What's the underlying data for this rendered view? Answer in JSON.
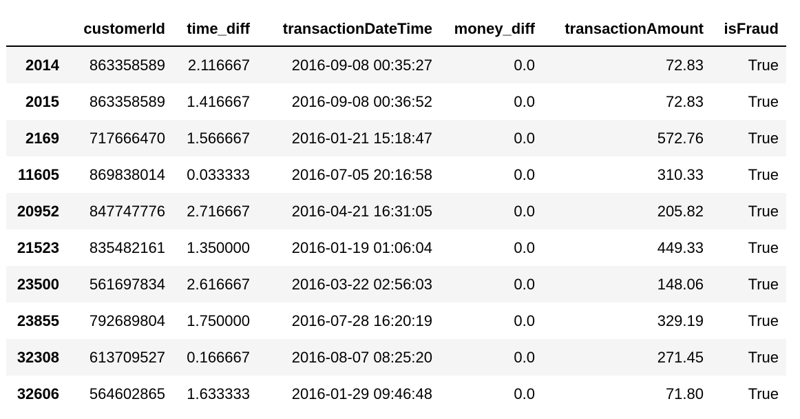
{
  "table": {
    "columns": [
      "",
      "customerId",
      "time_diff",
      "transactionDateTime",
      "money_diff",
      "transactionAmount",
      "isFraud"
    ],
    "rows": [
      {
        "index": "2014",
        "customerId": "863358589",
        "time_diff": "2.116667",
        "transactionDateTime": "2016-09-08 00:35:27",
        "money_diff": "0.0",
        "transactionAmount": "72.83",
        "isFraud": "True"
      },
      {
        "index": "2015",
        "customerId": "863358589",
        "time_diff": "1.416667",
        "transactionDateTime": "2016-09-08 00:36:52",
        "money_diff": "0.0",
        "transactionAmount": "72.83",
        "isFraud": "True"
      },
      {
        "index": "2169",
        "customerId": "717666470",
        "time_diff": "1.566667",
        "transactionDateTime": "2016-01-21 15:18:47",
        "money_diff": "0.0",
        "transactionAmount": "572.76",
        "isFraud": "True"
      },
      {
        "index": "11605",
        "customerId": "869838014",
        "time_diff": "0.033333",
        "transactionDateTime": "2016-07-05 20:16:58",
        "money_diff": "0.0",
        "transactionAmount": "310.33",
        "isFraud": "True"
      },
      {
        "index": "20952",
        "customerId": "847747776",
        "time_diff": "2.716667",
        "transactionDateTime": "2016-04-21 16:31:05",
        "money_diff": "0.0",
        "transactionAmount": "205.82",
        "isFraud": "True"
      },
      {
        "index": "21523",
        "customerId": "835482161",
        "time_diff": "1.350000",
        "transactionDateTime": "2016-01-19 01:06:04",
        "money_diff": "0.0",
        "transactionAmount": "449.33",
        "isFraud": "True"
      },
      {
        "index": "23500",
        "customerId": "561697834",
        "time_diff": "2.616667",
        "transactionDateTime": "2016-03-22 02:56:03",
        "money_diff": "0.0",
        "transactionAmount": "148.06",
        "isFraud": "True"
      },
      {
        "index": "23855",
        "customerId": "792689804",
        "time_diff": "1.750000",
        "transactionDateTime": "2016-07-28 16:20:19",
        "money_diff": "0.0",
        "transactionAmount": "329.19",
        "isFraud": "True"
      },
      {
        "index": "32308",
        "customerId": "613709527",
        "time_diff": "0.166667",
        "transactionDateTime": "2016-08-07 08:25:20",
        "money_diff": "0.0",
        "transactionAmount": "271.45",
        "isFraud": "True"
      },
      {
        "index": "32606",
        "customerId": "564602865",
        "time_diff": "1.633333",
        "transactionDateTime": "2016-01-29 09:46:48",
        "money_diff": "0.0",
        "transactionAmount": "71.80",
        "isFraud": "True"
      }
    ]
  },
  "colors": {
    "row_stripe": "#f5f5f5",
    "header_rule": "#000000"
  }
}
